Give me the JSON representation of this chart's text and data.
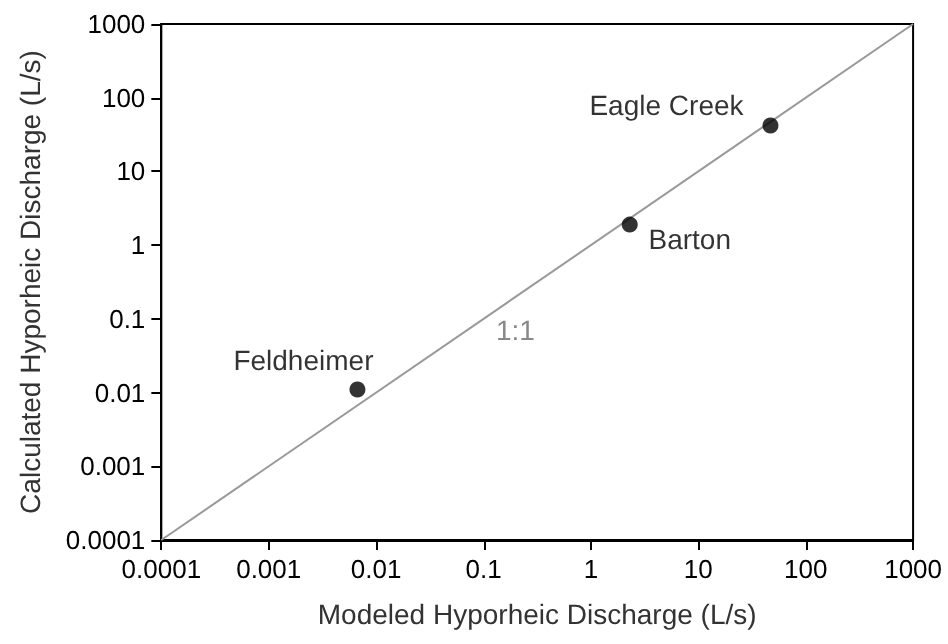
{
  "chart_data": {
    "type": "scatter",
    "xlabel": "Modeled Hyporheic Discharge (L/s)",
    "ylabel": "Calculated Hyporheic Discharge (L/s)",
    "log": "xy",
    "grid": false,
    "legend": false,
    "marker": "circle",
    "xlim": [
      0.0001,
      1000
    ],
    "ylim": [
      0.0001,
      1000
    ],
    "xticks": [
      0.0001,
      0.001,
      0.01,
      0.1,
      1,
      10,
      100,
      1000
    ],
    "yticks": [
      0.0001,
      0.001,
      0.01,
      0.1,
      1,
      10,
      100,
      1000
    ],
    "series": [
      {
        "name": "Feldheimer",
        "color": "#000000",
        "x": [
          0.0067
        ],
        "values": [
          0.011
        ]
      },
      {
        "name": "Barton",
        "color": "#000000",
        "x": [
          2.3
        ],
        "values": [
          1.9
        ]
      },
      {
        "name": "Eagle Creek",
        "color": "#000000",
        "x": [
          47
        ],
        "values": [
          42
        ]
      },
      {
        "type": "line",
        "color": "#999999",
        "line_style": "solid",
        "marker": "none",
        "x": [
          0.0001,
          1000
        ],
        "values": [
          0.0001,
          1000
        ]
      }
    ],
    "annotations": [
      "1:1"
    ]
  }
}
